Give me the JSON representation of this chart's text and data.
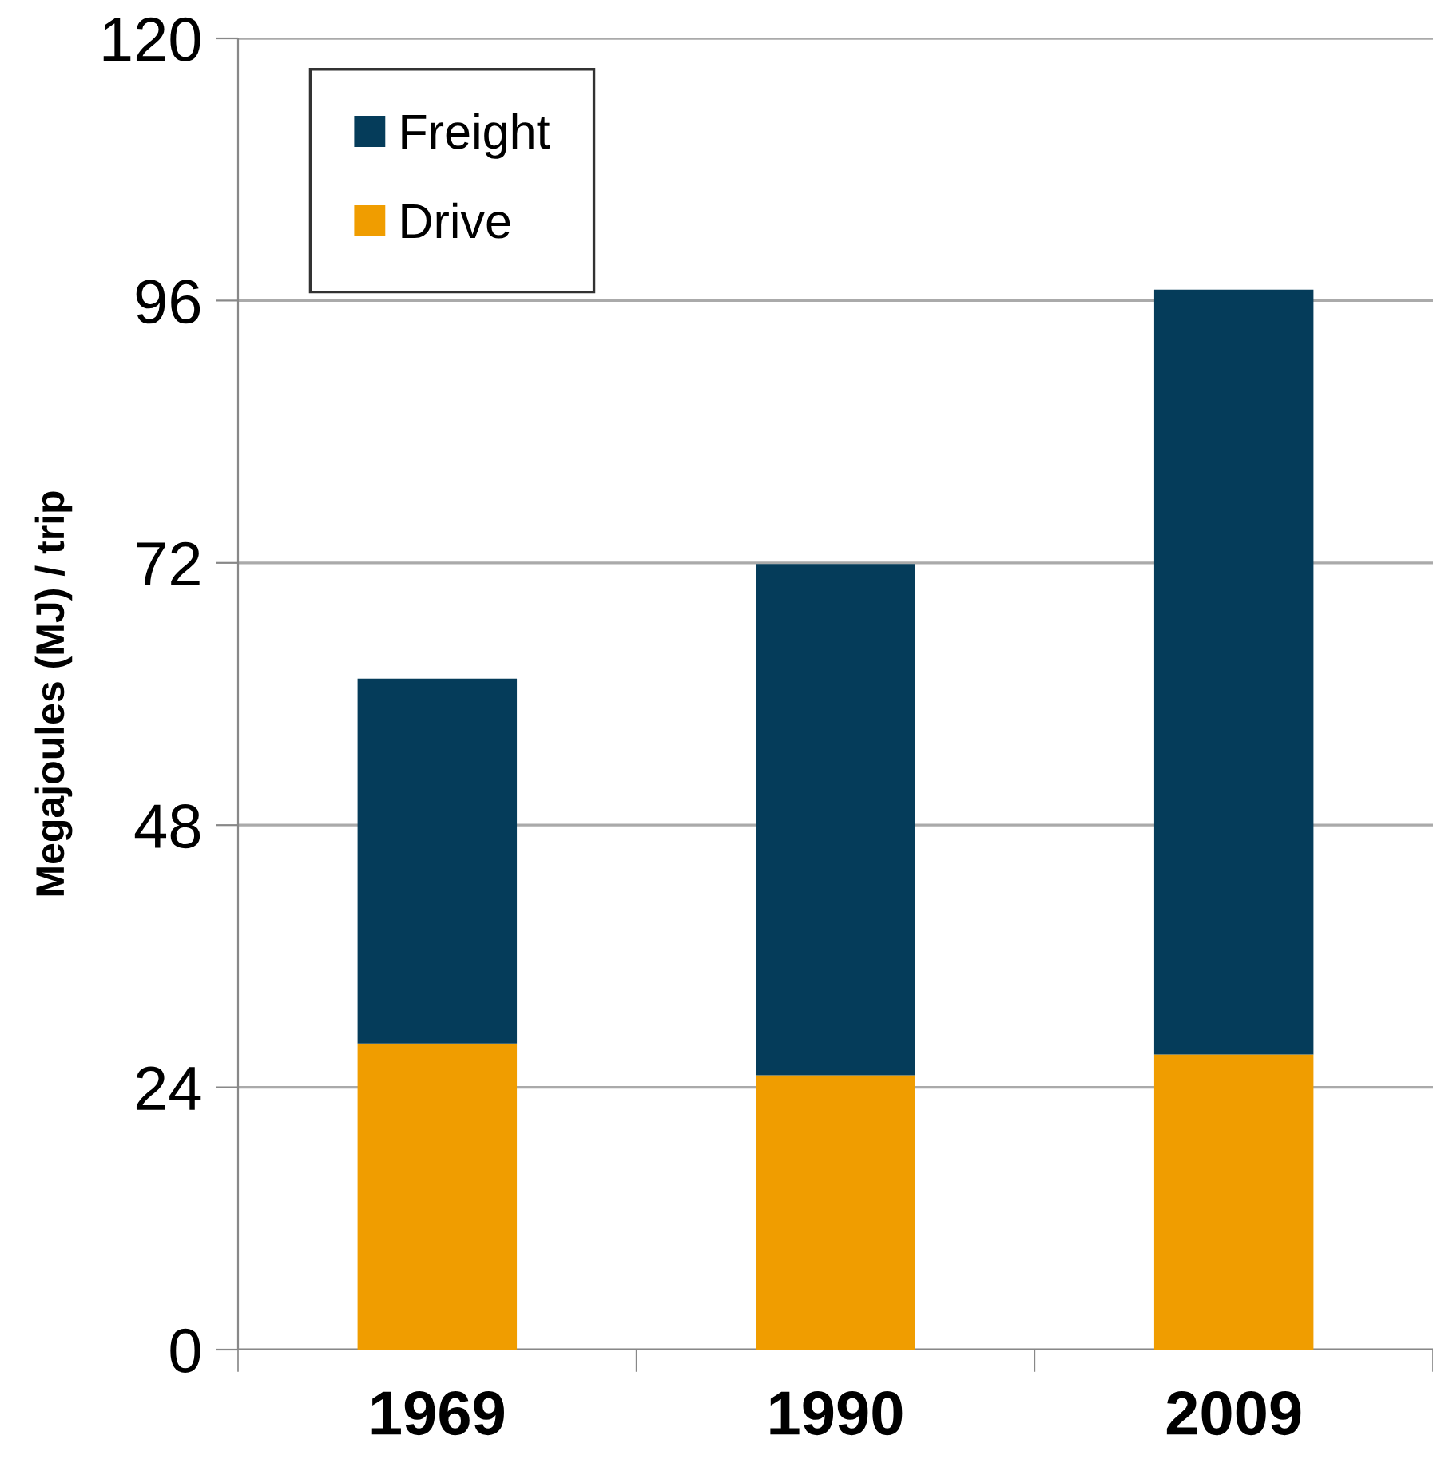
{
  "chart_data": {
    "type": "bar",
    "stacked": true,
    "categories": [
      "1969",
      "1990",
      "2009"
    ],
    "series": [
      {
        "name": "Drive",
        "color": "#f09d00",
        "values": [
          28,
          25.1,
          27
        ]
      },
      {
        "name": "Freight",
        "color": "#053c5a",
        "values": [
          33.4,
          46.8,
          70
        ]
      }
    ],
    "ylabel": "Megajoules (MJ) / trip",
    "ylim": [
      0,
      120
    ],
    "yticks": [
      0,
      24,
      48,
      72,
      96,
      120
    ],
    "grid": "y",
    "legend": "top left"
  }
}
